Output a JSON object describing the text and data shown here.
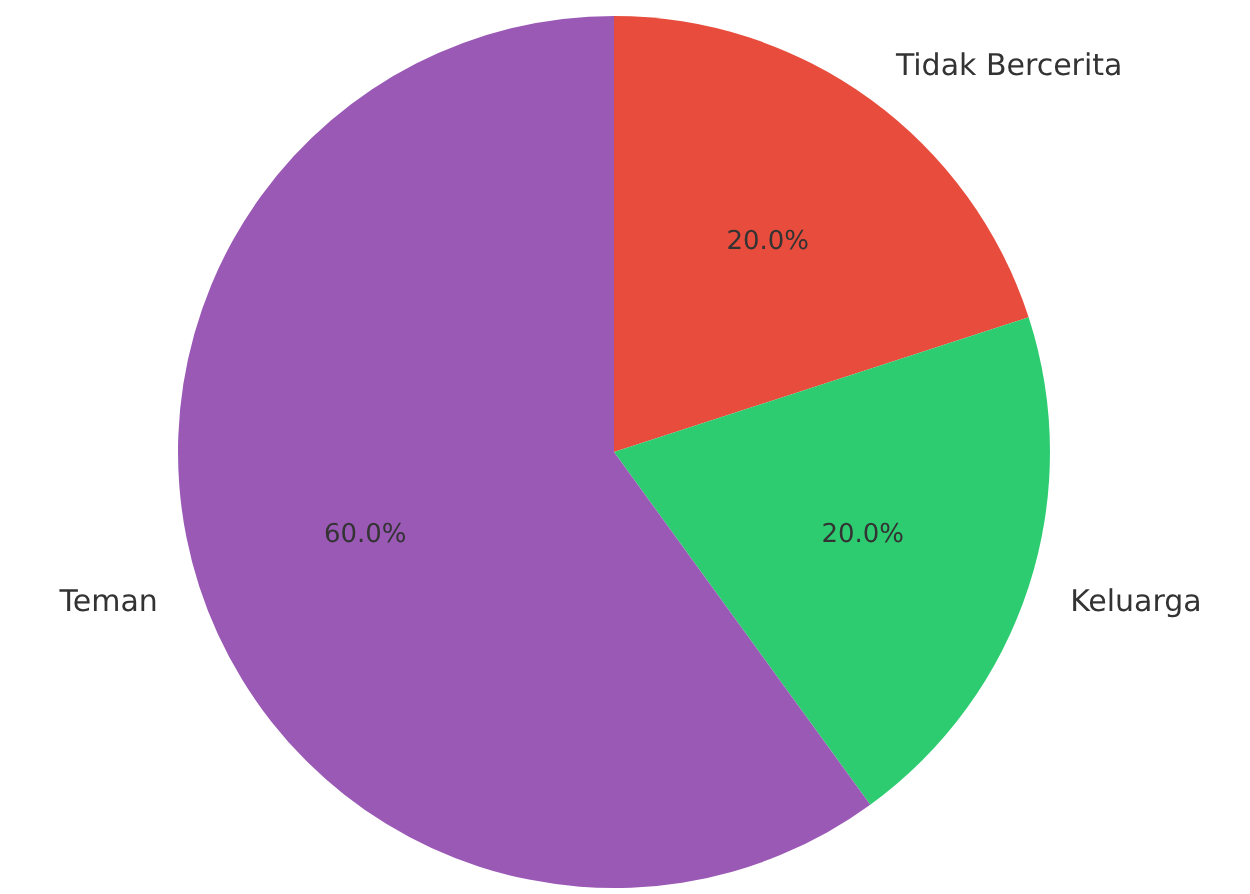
{
  "chart_data": {
    "type": "pie",
    "categories": [
      "Tidak Bercerita",
      "Keluarga",
      "Teman"
    ],
    "values": [
      20,
      20,
      60
    ],
    "colors": [
      "#e74c3c",
      "#2ecc71",
      "#9b59b6"
    ],
    "value_labels": [
      "20.0%",
      "20.0%",
      "60.0%"
    ]
  }
}
